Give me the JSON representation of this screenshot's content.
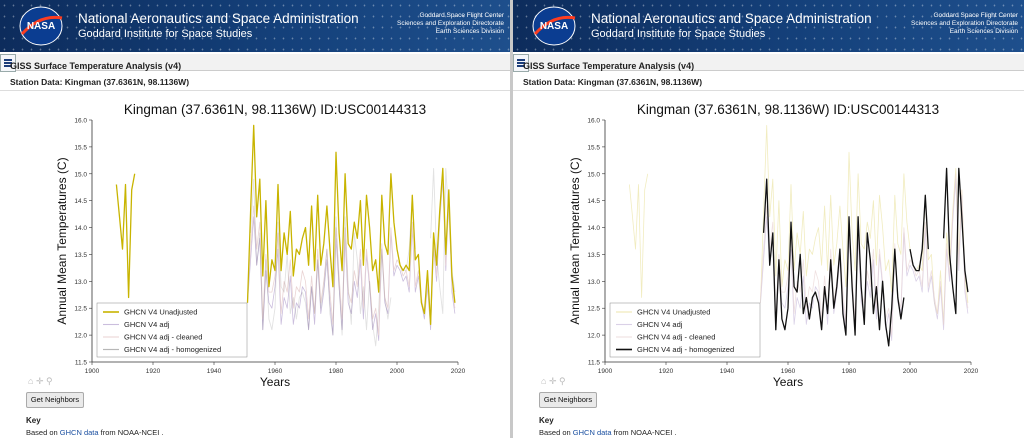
{
  "header": {
    "org_title": "National Aeronautics and Space Administration",
    "org_subtitle": "Goddard Institute for Space Studies",
    "logo_text": "NASA",
    "right_lines": [
      "Goddard Space Flight Center",
      "Sciences and Exploration Directorate",
      "Earth Sciences Division"
    ]
  },
  "page": {
    "section_title": "GISS Surface Temperature Analysis (v4)",
    "station_label": "Station Data: Kingman (37.6361N, 98.1136W)",
    "get_neighbors_label": "Get Neighbors",
    "key_label": "Key",
    "note_prefix": "Based on ",
    "note_link": "GHCN data",
    "note_suffix": " from NOAA-NCEI ."
  },
  "colors": {
    "unadjusted": "#c8b400",
    "adj": "#cbbedd",
    "cleaned": "#ead4d4",
    "homogenized": "#111111",
    "banner": "#14407a"
  },
  "chart_data": [
    {
      "type": "line",
      "title": "Kingman (37.6361N, 98.1136W) ID:USC00144313",
      "xlabel": "Years",
      "ylabel": "Annual Mean Temperatures (C)",
      "xlim": [
        1900,
        2020
      ],
      "ylim": [
        11.5,
        16.0
      ],
      "xticks": [
        1900,
        1920,
        1940,
        1960,
        1980,
        2000,
        2020
      ],
      "yticks": [
        11.5,
        12.0,
        12.5,
        13.0,
        13.5,
        14.0,
        14.5,
        15.0,
        15.5,
        16.0
      ],
      "legend_position": "bottom-left",
      "highlighted_series": "GHCN V4 Unadjusted",
      "series": [
        {
          "name": "GHCN V4 Unadjusted",
          "color": "#c8b400",
          "x": [
            1908,
            1909,
            1910,
            1911,
            1912,
            1913,
            1914,
            null,
            1951,
            1952,
            1953,
            1954,
            1955,
            1956,
            1957,
            1958,
            1959,
            1960,
            1961,
            1962,
            1963,
            1964,
            1965,
            1966,
            1967,
            1968,
            1969,
            1970,
            1971,
            1972,
            1973,
            1974,
            1975,
            1976,
            1977,
            1978,
            1979,
            1980,
            1981,
            1982,
            1983,
            1984,
            1985,
            1986,
            1987,
            1988,
            1989,
            1990,
            1991,
            1992,
            1993,
            1994,
            1995,
            1996,
            1997,
            1998,
            1999,
            2000,
            2001,
            2002,
            2003,
            2004,
            2005,
            2006,
            2007,
            2008,
            2009,
            2010,
            2011,
            2012,
            2013,
            2014,
            2015,
            2016,
            2017,
            2018,
            2019
          ],
          "y": [
            14.8,
            14.2,
            13.6,
            14.8,
            12.7,
            14.7,
            15.0,
            null,
            12.6,
            14.3,
            15.9,
            14.2,
            14.9,
            13.1,
            14.5,
            12.9,
            13.4,
            13.2,
            14.8,
            13.2,
            13.9,
            13.5,
            14.3,
            13.1,
            13.6,
            13.5,
            13.8,
            14.0,
            13.3,
            14.4,
            13.2,
            14.6,
            13.3,
            13.7,
            14.4,
            13.6,
            12.9,
            15.4,
            13.9,
            13.2,
            15.0,
            13.7,
            13.6,
            14.1,
            13.8,
            14.5,
            13.3,
            14.6,
            14.0,
            13.2,
            13.4,
            12.8,
            14.6,
            13.7,
            13.5,
            15.0,
            14.1,
            13.6,
            13.3,
            13.2,
            13.3,
            13.2,
            14.6,
            13.4,
            13.5,
            12.6,
            12.4,
            13.2,
            12.2,
            13.9,
            13.3,
            14.3,
            15.1,
            13.5,
            14.7,
            13.1,
            12.6
          ]
        },
        {
          "name": "GHCN V4 adj",
          "color": "#cbbedd",
          "x": [
            1951,
            1952,
            1953,
            1954,
            1955,
            1956,
            1957,
            1958,
            1959,
            1960,
            1961,
            1962,
            1963,
            1964,
            1965,
            1966,
            1967,
            1968,
            1969,
            1970,
            1971,
            1972,
            1973,
            1974,
            1975,
            1976,
            1977,
            1978,
            1979,
            1980,
            1981,
            1982,
            1983,
            1984,
            1985,
            1986,
            1987,
            1988,
            1989,
            1990,
            1991,
            1992,
            1993,
            1994,
            1995,
            1996,
            1997,
            1998,
            1999,
            2000,
            2001,
            2002,
            2003,
            2004,
            2005,
            2006,
            2007,
            2008,
            2009,
            2010,
            2011,
            2012,
            2013,
            2014,
            2015,
            2016,
            2017,
            2018,
            2019
          ],
          "y": [
            12.6,
            13.4,
            14.2,
            13.3,
            13.8,
            12.1,
            13.2,
            12.6,
            12.5,
            12.9,
            13.6,
            12.2,
            12.7,
            12.5,
            13.1,
            12.2,
            12.6,
            12.5,
            12.9,
            12.8,
            12.1,
            12.9,
            12.2,
            13.4,
            12.4,
            12.8,
            13.4,
            12.6,
            12.0,
            13.8,
            12.9,
            12.1,
            13.8,
            12.6,
            12.4,
            13.0,
            12.7,
            13.4,
            12.3,
            13.5,
            12.9,
            12.1,
            12.4,
            11.9,
            13.6,
            12.6,
            12.4,
            13.9,
            13.1,
            13.3,
            13.2,
            13.0,
            13.1,
            12.8,
            14.0,
            12.8,
            13.1,
            12.6,
            12.3,
            12.9,
            12.1,
            13.6,
            13.0,
            14.1,
            14.9,
            13.2,
            14.6,
            12.8,
            12.4
          ]
        },
        {
          "name": "GHCN V4 adj - cleaned",
          "color": "#ead4d4",
          "x": [
            1951,
            1952,
            1953,
            1954,
            1955,
            1956,
            1957,
            1958,
            1959,
            1960,
            1961,
            1962,
            1963,
            1964,
            1965,
            1966,
            1967,
            1968,
            1969,
            1970,
            1971,
            1972,
            1973,
            1974,
            1975,
            1976,
            1977,
            1978,
            1979,
            1980,
            1981,
            1982,
            1983,
            1984,
            1985,
            1986,
            1987,
            1988,
            1989,
            1990,
            1991,
            1992,
            1993,
            1994,
            1995,
            1996,
            1997,
            1998,
            1999,
            2000,
            2001,
            2002,
            2003,
            2004,
            2005,
            2006,
            2007,
            2008,
            2009,
            2010,
            2011,
            2012,
            2013,
            2014,
            2015,
            2016,
            2017,
            2018,
            2019
          ],
          "y": [
            12.7,
            13.6,
            14.4,
            13.6,
            14.1,
            12.3,
            13.5,
            12.8,
            12.8,
            13.1,
            13.9,
            12.4,
            13.0,
            12.8,
            13.4,
            12.5,
            12.9,
            12.8,
            13.2,
            13.0,
            12.3,
            13.1,
            12.4,
            13.6,
            12.6,
            13.0,
            13.6,
            12.8,
            12.2,
            14.0,
            13.1,
            12.3,
            14.0,
            12.8,
            12.6,
            13.2,
            12.9,
            13.6,
            12.5,
            13.6,
            13.0,
            12.3,
            12.5,
            12.0,
            13.7,
            12.7,
            12.5,
            14.0,
            13.2,
            13.4,
            13.3,
            13.1,
            13.2,
            12.9,
            14.1,
            12.9,
            13.2,
            12.7,
            12.4,
            13.0,
            12.2,
            13.7,
            13.1,
            14.2,
            15.0,
            13.3,
            14.7,
            12.9,
            12.5
          ]
        },
        {
          "name": "GHCN V4 adj - homogenized",
          "color": "#111111",
          "x": [
            1952,
            1953,
            1954,
            1955,
            1956,
            1957,
            1958,
            1959,
            1960,
            1961,
            1962,
            1963,
            1964,
            1965,
            1966,
            1967,
            1968,
            1969,
            1970,
            1971,
            1972,
            1973,
            1974,
            1975,
            1976,
            1977,
            1978,
            1979,
            1980,
            1981,
            1982,
            1983,
            1984,
            1985,
            1986,
            1987,
            1988,
            1989,
            1990,
            1991,
            1992,
            1993,
            1994,
            1995,
            1996,
            1997,
            1998,
            null,
            2000,
            2001,
            2002,
            2003,
            2004,
            2005,
            2006,
            null,
            2011,
            2012,
            2013,
            2014,
            2015,
            2016,
            2017,
            2018,
            2019
          ],
          "y": [
            13.9,
            14.9,
            13.3,
            13.9,
            12.1,
            13.4,
            12.3,
            12.1,
            12.5,
            14.1,
            12.9,
            12.8,
            13.5,
            12.4,
            12.7,
            12.3,
            12.7,
            12.8,
            12.6,
            12.1,
            12.9,
            12.4,
            13.4,
            12.5,
            12.9,
            13.6,
            12.4,
            12.0,
            14.2,
            12.9,
            12.0,
            14.2,
            12.9,
            12.2,
            13.9,
            13.4,
            12.4,
            12.9,
            12.1,
            13.0,
            12.2,
            11.8,
            12.5,
            13.6,
            12.7,
            12.3,
            12.7,
            null,
            13.6,
            13.3,
            13.2,
            13.2,
            13.6,
            14.6,
            13.6,
            null,
            13.8,
            15.1,
            13.5,
            12.9,
            12.4,
            15.1,
            14.2,
            13.2,
            12.8
          ]
        }
      ]
    }
  ]
}
